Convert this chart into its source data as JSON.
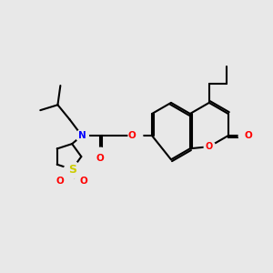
{
  "bg_color": "#e8e8e8",
  "bond_color": "#000000",
  "bond_width": 1.5,
  "atom_colors": {
    "N": "#0000ff",
    "O": "#ff0000",
    "S": "#cccc00",
    "C": "#000000"
  },
  "font_size": 7.5
}
